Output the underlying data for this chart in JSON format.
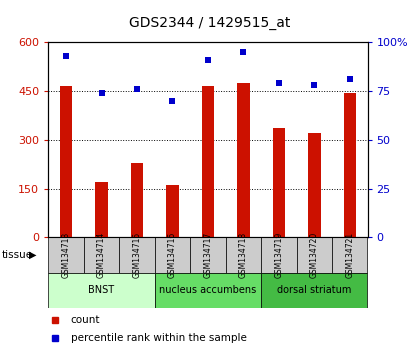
{
  "title": "GDS2344 / 1429515_at",
  "samples": [
    "GSM134713",
    "GSM134714",
    "GSM134715",
    "GSM134716",
    "GSM134717",
    "GSM134718",
    "GSM134719",
    "GSM134720",
    "GSM134721"
  ],
  "counts": [
    465,
    170,
    230,
    160,
    465,
    475,
    335,
    320,
    445
  ],
  "percentiles": [
    93,
    74,
    76,
    70,
    91,
    95,
    79,
    78,
    81
  ],
  "ylim_left": [
    0,
    600
  ],
  "ylim_right": [
    0,
    100
  ],
  "yticks_left": [
    0,
    150,
    300,
    450,
    600
  ],
  "yticks_right": [
    0,
    25,
    50,
    75,
    100
  ],
  "ytick_labels_right": [
    "0",
    "25",
    "50",
    "75",
    "100%"
  ],
  "bar_color": "#cc1100",
  "dot_color": "#0000cc",
  "tissue_groups": [
    {
      "label": "BNST",
      "start": 0,
      "end": 3,
      "color": "#ccffcc"
    },
    {
      "label": "nucleus accumbens",
      "start": 3,
      "end": 6,
      "color": "#66dd66"
    },
    {
      "label": "dorsal striatum",
      "start": 6,
      "end": 9,
      "color": "#44bb44"
    }
  ],
  "left_tick_color": "#cc1100",
  "right_tick_color": "#0000cc",
  "sample_box_color": "#cccccc",
  "bar_width": 0.35,
  "dot_size": 5
}
